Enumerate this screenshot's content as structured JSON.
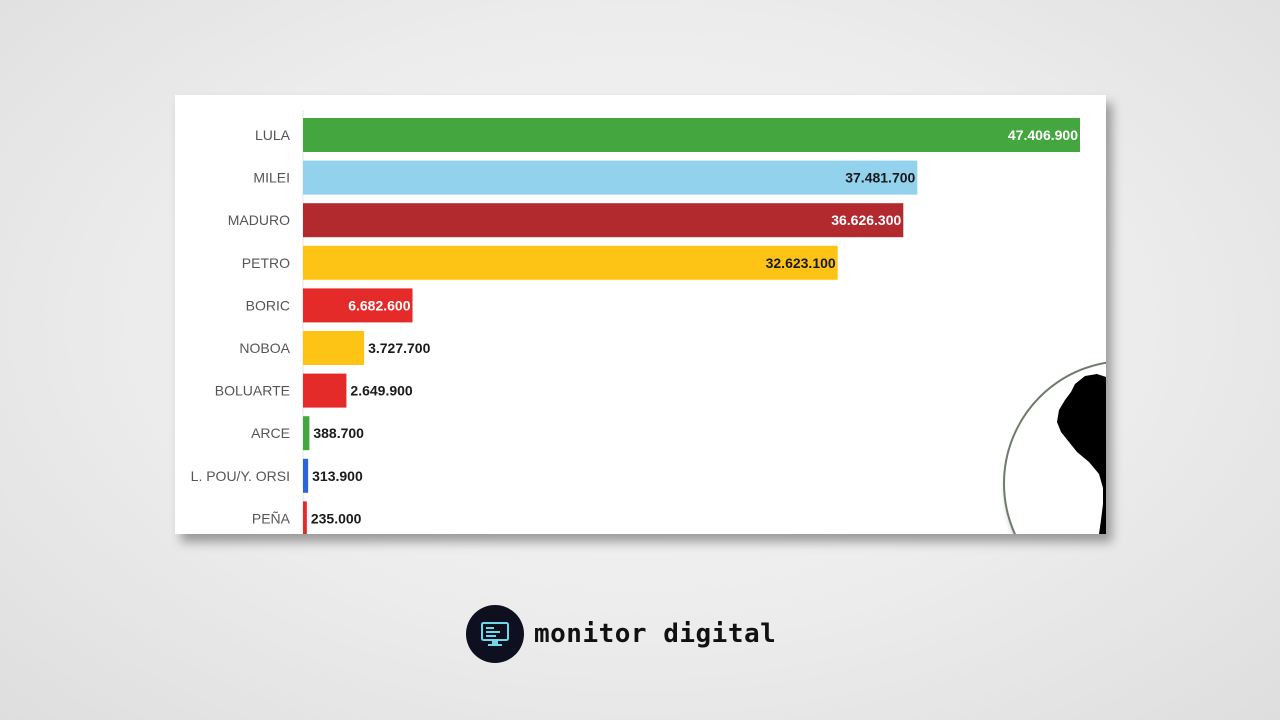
{
  "chart_data": {
    "type": "bar",
    "orientation": "horizontal",
    "categories": [
      "LULA",
      "MILEI",
      "MADURO",
      "PETRO",
      "BORIC",
      "NOBOA",
      "BOLUARTE",
      "ARCE",
      "L. POU/Y. ORSI",
      "PEÑA"
    ],
    "values": [
      47406900,
      37481700,
      36626300,
      32623100,
      6682600,
      3727700,
      2649900,
      388700,
      313900,
      235000
    ],
    "value_labels": [
      "47.406.900",
      "37.481.700",
      "36.626.300",
      "32.623.100",
      "6.682.600",
      "3.727.700",
      "2.649.900",
      "388.700",
      "313.900",
      "235.000"
    ],
    "colors": [
      "#43a63f",
      "#93d2ec",
      "#b2292e",
      "#fdc416",
      "#e52a2a",
      "#fdc416",
      "#e52a2a",
      "#43a63f",
      "#2b63d9",
      "#e52a2a"
    ],
    "label_inside": [
      true,
      true,
      true,
      true,
      true,
      false,
      false,
      false,
      false,
      false
    ],
    "label_light": [
      true,
      false,
      true,
      false,
      true,
      false,
      false,
      false,
      false,
      false
    ],
    "title": "",
    "xlabel": "",
    "ylabel": "",
    "xlim": [
      0,
      47406900
    ],
    "grid": false,
    "legend": "none"
  },
  "inset": {
    "icon": "south-america-map-icon"
  },
  "brand": {
    "icon": "computer-monitor-icon",
    "name": "monitor digital"
  }
}
